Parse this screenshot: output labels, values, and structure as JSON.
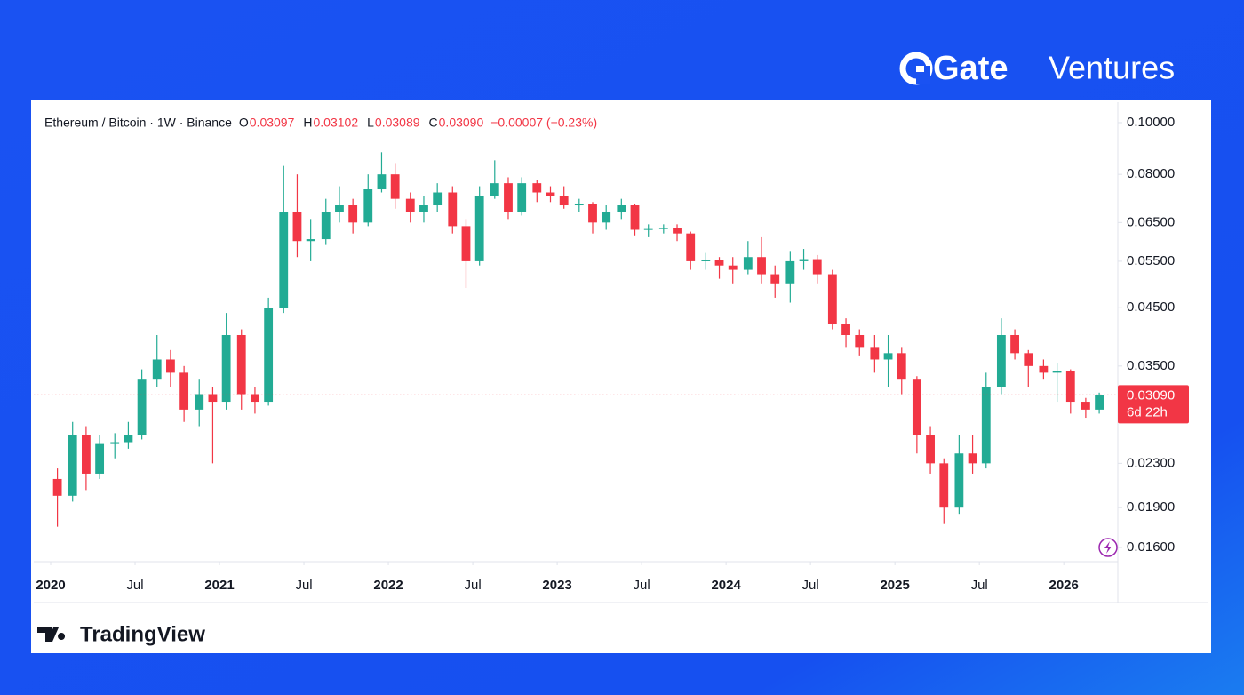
{
  "brand": {
    "name": "Gate",
    "suffix": "Ventures"
  },
  "footer": {
    "logo": "TradingView"
  },
  "chart_data": {
    "type": "candlestick",
    "title": "Ethereum / Bitcoin · 1W · Binance",
    "header": {
      "o_label": "O",
      "open": "0.03097",
      "h_label": "H",
      "high": "0.03102",
      "l_label": "L",
      "low": "0.03089",
      "c_label": "C",
      "close": "0.03090",
      "change": "−0.00007 (−0.23%)"
    },
    "log_scale": true,
    "up_color": "#22ab94",
    "down_color": "#f23645",
    "x": [
      2020.04,
      2020.13,
      2020.21,
      2020.29,
      2020.38,
      2020.46,
      2020.54,
      2020.63,
      2020.71,
      2020.79,
      2020.88,
      2020.96,
      2021.04,
      2021.13,
      2021.21,
      2021.29,
      2021.38,
      2021.46,
      2021.54,
      2021.63,
      2021.71,
      2021.79,
      2021.88,
      2021.96,
      2022.04,
      2022.13,
      2022.21,
      2022.29,
      2022.38,
      2022.46,
      2022.54,
      2022.63,
      2022.71,
      2022.79,
      2022.88,
      2022.96,
      2023.04,
      2023.13,
      2023.21,
      2023.29,
      2023.38,
      2023.46,
      2023.54,
      2023.63,
      2023.71,
      2023.79,
      2023.88,
      2023.96,
      2024.04,
      2024.13,
      2024.21,
      2024.29,
      2024.38,
      2024.46,
      2024.54,
      2024.63,
      2024.71,
      2024.79,
      2024.88,
      2024.96,
      2025.04,
      2025.13,
      2025.21,
      2025.29,
      2025.38,
      2025.46,
      2025.54,
      2025.63,
      2025.71,
      2025.79,
      2025.88,
      2025.96,
      2026.04,
      2026.13,
      2026.21
    ],
    "open": [
      0.0215,
      0.02,
      0.026,
      0.022,
      0.025,
      0.0252,
      0.026,
      0.033,
      0.036,
      0.034,
      0.029,
      0.031,
      0.03,
      0.04,
      0.031,
      0.03,
      0.045,
      0.068,
      0.06,
      0.0605,
      0.068,
      0.07,
      0.065,
      0.075,
      0.08,
      0.072,
      0.068,
      0.07,
      0.074,
      0.064,
      0.055,
      0.073,
      0.077,
      0.068,
      0.077,
      0.074,
      0.073,
      0.07,
      0.0705,
      0.065,
      0.068,
      0.07,
      0.063,
      0.0632,
      0.0635,
      0.062,
      0.055,
      0.0552,
      0.054,
      0.053,
      0.056,
      0.052,
      0.05,
      0.055,
      0.0555,
      0.052,
      0.042,
      0.04,
      0.038,
      0.036,
      0.037,
      0.033,
      0.026,
      0.023,
      0.019,
      0.024,
      0.023,
      0.032,
      0.04,
      0.037,
      0.035,
      0.034,
      0.0342,
      0.03,
      0.029
    ],
    "high": [
      0.0225,
      0.0275,
      0.027,
      0.026,
      0.0262,
      0.0275,
      0.0345,
      0.04,
      0.0375,
      0.035,
      0.033,
      0.032,
      0.044,
      0.041,
      0.032,
      0.047,
      0.083,
      0.08,
      0.066,
      0.072,
      0.076,
      0.072,
      0.08,
      0.088,
      0.084,
      0.074,
      0.073,
      0.077,
      0.076,
      0.066,
      0.076,
      0.085,
      0.079,
      0.079,
      0.078,
      0.076,
      0.076,
      0.072,
      0.071,
      0.07,
      0.072,
      0.0705,
      0.0645,
      0.0645,
      0.0645,
      0.0625,
      0.057,
      0.056,
      0.056,
      0.06,
      0.061,
      0.054,
      0.0575,
      0.058,
      0.0565,
      0.053,
      0.043,
      0.041,
      0.04,
      0.04,
      0.038,
      0.0335,
      0.027,
      0.0235,
      0.026,
      0.026,
      0.034,
      0.043,
      0.041,
      0.0375,
      0.036,
      0.0355,
      0.0345,
      0.0305,
      0.0312
    ],
    "low": [
      0.0175,
      0.0195,
      0.0205,
      0.0215,
      0.0235,
      0.0245,
      0.0255,
      0.032,
      0.032,
      0.0275,
      0.027,
      0.023,
      0.029,
      0.029,
      0.0285,
      0.0295,
      0.044,
      0.056,
      0.055,
      0.059,
      0.065,
      0.062,
      0.064,
      0.074,
      0.069,
      0.065,
      0.065,
      0.068,
      0.062,
      0.049,
      0.054,
      0.072,
      0.066,
      0.067,
      0.071,
      0.071,
      0.069,
      0.068,
      0.062,
      0.063,
      0.066,
      0.0615,
      0.061,
      0.062,
      0.06,
      0.053,
      0.053,
      0.051,
      0.05,
      0.052,
      0.05,
      0.047,
      0.046,
      0.053,
      0.05,
      0.041,
      0.038,
      0.0365,
      0.034,
      0.032,
      0.031,
      0.024,
      0.022,
      0.0177,
      0.0185,
      0.022,
      0.0225,
      0.031,
      0.036,
      0.032,
      0.033,
      0.03,
      0.0285,
      0.028,
      0.0285
    ],
    "close": [
      0.02,
      0.026,
      0.022,
      0.025,
      0.0252,
      0.026,
      0.033,
      0.036,
      0.034,
      0.029,
      0.031,
      0.03,
      0.04,
      0.031,
      0.03,
      0.045,
      0.068,
      0.06,
      0.0605,
      0.068,
      0.07,
      0.065,
      0.075,
      0.08,
      0.072,
      0.068,
      0.07,
      0.074,
      0.064,
      0.055,
      0.073,
      0.077,
      0.068,
      0.077,
      0.074,
      0.073,
      0.07,
      0.0705,
      0.065,
      0.068,
      0.07,
      0.063,
      0.0632,
      0.0635,
      0.062,
      0.055,
      0.0552,
      0.054,
      0.053,
      0.056,
      0.052,
      0.05,
      0.055,
      0.0555,
      0.052,
      0.042,
      0.04,
      0.038,
      0.036,
      0.037,
      0.033,
      0.026,
      0.023,
      0.019,
      0.024,
      0.023,
      0.032,
      0.04,
      0.037,
      0.035,
      0.034,
      0.0342,
      0.03,
      0.029,
      0.0309
    ],
    "xlim": [
      2019.9,
      2026.32
    ],
    "xticks": [
      2020,
      {
        "value": 2020.5,
        "label": "Jul"
      },
      2021,
      {
        "value": 2021.5,
        "label": "Jul"
      },
      2022,
      {
        "value": 2022.5,
        "label": "Jul"
      },
      2023,
      {
        "value": 2023.5,
        "label": "Jul"
      },
      2024,
      {
        "value": 2024.5,
        "label": "Jul"
      },
      2025,
      {
        "value": 2025.5,
        "label": "Jul"
      },
      2026
    ],
    "ylim": [
      0.01505,
      0.1092
    ],
    "yticks": [
      {
        "value": 0.1,
        "label": "0.10000"
      },
      {
        "value": 0.08,
        "label": "0.08000"
      },
      {
        "value": 0.065,
        "label": "0.06500"
      },
      {
        "value": 0.055,
        "label": "0.05500"
      },
      {
        "value": 0.045,
        "label": "0.04500"
      },
      {
        "value": 0.035,
        "label": "0.03500"
      },
      {
        "value": 0.023,
        "label": "0.02300"
      },
      {
        "value": 0.019,
        "label": "0.01900"
      },
      {
        "value": 0.016,
        "label": "0.01600"
      }
    ],
    "last_price": {
      "value": 0.0309,
      "label": "0.03090"
    },
    "countdown": "6d 22h"
  }
}
